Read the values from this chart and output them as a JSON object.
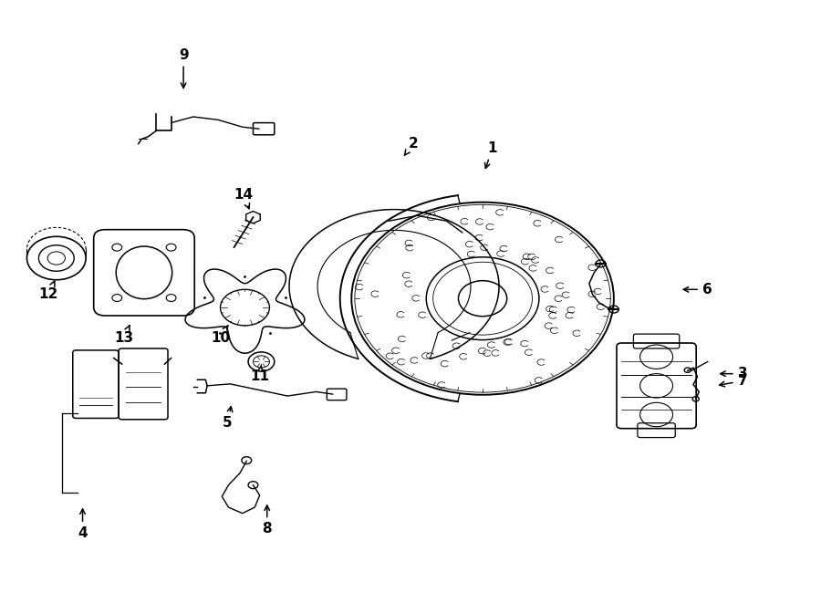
{
  "bg_color": "#ffffff",
  "lc": "#000000",
  "fig_width": 9.0,
  "fig_height": 6.61,
  "dpi": 100,
  "label_positions": {
    "1": [
      0.6,
      0.755,
      0.59,
      0.715
    ],
    "2": [
      0.503,
      0.762,
      0.49,
      0.738
    ],
    "3": [
      0.905,
      0.38,
      0.873,
      0.38
    ],
    "4": [
      0.1,
      0.115,
      0.1,
      0.162
    ],
    "5": [
      0.277,
      0.298,
      0.282,
      0.332
    ],
    "6": [
      0.862,
      0.52,
      0.828,
      0.52
    ],
    "7": [
      0.905,
      0.368,
      0.872,
      0.36
    ],
    "8": [
      0.325,
      0.122,
      0.325,
      0.168
    ],
    "9": [
      0.223,
      0.91,
      0.223,
      0.848
    ],
    "10": [
      0.268,
      0.44,
      0.278,
      0.462
    ],
    "11": [
      0.316,
      0.375,
      0.318,
      0.395
    ],
    "12": [
      0.058,
      0.512,
      0.068,
      0.54
    ],
    "13": [
      0.15,
      0.44,
      0.158,
      0.462
    ],
    "14": [
      0.296,
      0.678,
      0.305,
      0.648
    ]
  }
}
